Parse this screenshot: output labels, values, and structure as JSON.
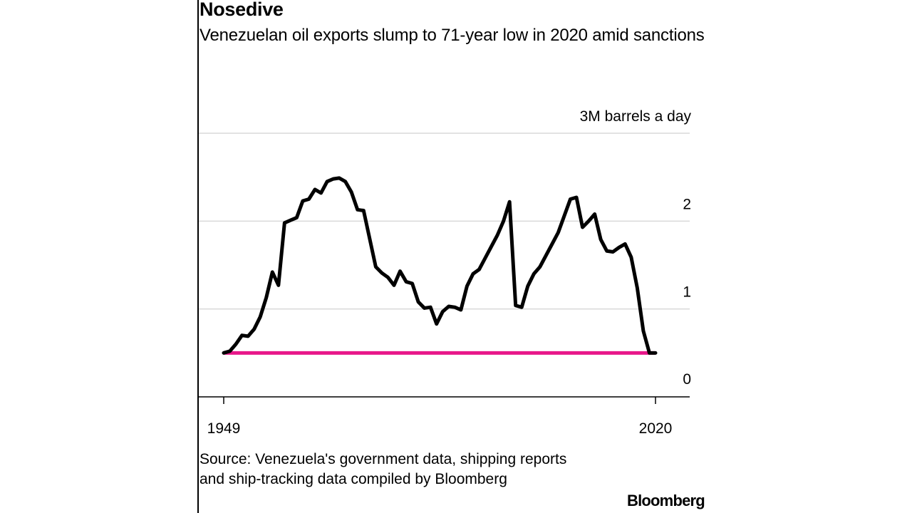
{
  "header": {
    "title": "Nosedive",
    "subtitle": "Venezuelan oil exports slump to 71-year low in 2020 amid sanctions"
  },
  "footer": {
    "source": "Source: Venezuela's government data, shipping reports and ship-tracking data compiled by Bloomberg",
    "brand": "Bloomberg"
  },
  "colors": {
    "line": "#000000",
    "highlight": "#e8178a",
    "grid": "#d9d9d9",
    "axis": "#000000"
  },
  "chart_data": {
    "type": "line",
    "title": "Nosedive",
    "subtitle": "Venezuelan oil exports slump to 71-year low in 2020 amid sanctions",
    "xlabel": "",
    "ylabel": "",
    "y_unit_label": "3M barrels a day",
    "xlim": [
      1949,
      2020
    ],
    "ylim": [
      0,
      3
    ],
    "yticks": [
      0,
      1,
      2,
      3
    ],
    "ytick_labels": [
      "0",
      "1",
      "2",
      "3M barrels a day"
    ],
    "xticks": [
      1949,
      2020
    ],
    "xtick_labels": [
      "1949",
      "2020"
    ],
    "grid": true,
    "legend": "none",
    "series": [
      {
        "x": [
          1949,
          1950,
          1951,
          1952,
          1953,
          1954,
          1955,
          1956,
          1957,
          1958,
          1959,
          1960,
          1961,
          1962,
          1963,
          1964,
          1965,
          1966,
          1967,
          1968,
          1969,
          1970,
          1971,
          1972,
          1973,
          1974,
          1975,
          1976,
          1977,
          1978,
          1979,
          1980,
          1981,
          1982,
          1983,
          1984,
          1985,
          1986,
          1987,
          1988,
          1989,
          1990,
          1991,
          1992,
          1993,
          1994,
          1995,
          1996,
          1997,
          1998,
          1999,
          2000,
          2001,
          2002,
          2003,
          2004,
          2005,
          2006,
          2007,
          2008,
          2009,
          2010,
          2011,
          2012,
          2013,
          2014,
          2015,
          2016,
          2017,
          2018,
          2019,
          2020
        ],
        "values": [
          0.5,
          0.52,
          0.6,
          0.7,
          0.69,
          0.77,
          0.91,
          1.13,
          1.42,
          1.27,
          1.98,
          2.01,
          2.04,
          2.23,
          2.25,
          2.36,
          2.32,
          2.45,
          2.48,
          2.49,
          2.45,
          2.33,
          2.13,
          2.12,
          1.8,
          1.48,
          1.41,
          1.36,
          1.27,
          1.43,
          1.31,
          1.29,
          1.08,
          1.01,
          1.02,
          0.83,
          0.97,
          1.03,
          1.02,
          0.99,
          1.26,
          1.4,
          1.45,
          1.58,
          1.71,
          1.84,
          2.0,
          2.22,
          1.04,
          1.02,
          1.26,
          1.4,
          1.48,
          1.61,
          1.74,
          1.87,
          2.06,
          2.25,
          2.27,
          1.93,
          2.0,
          2.08,
          1.79,
          1.66,
          1.65,
          1.7,
          1.74,
          1.59,
          1.24,
          0.75,
          0.5,
          0.5
        ]
      },
      {
        "x": [
          1949,
          2020
        ],
        "values": [
          0.5,
          0.5
        ]
      }
    ]
  }
}
